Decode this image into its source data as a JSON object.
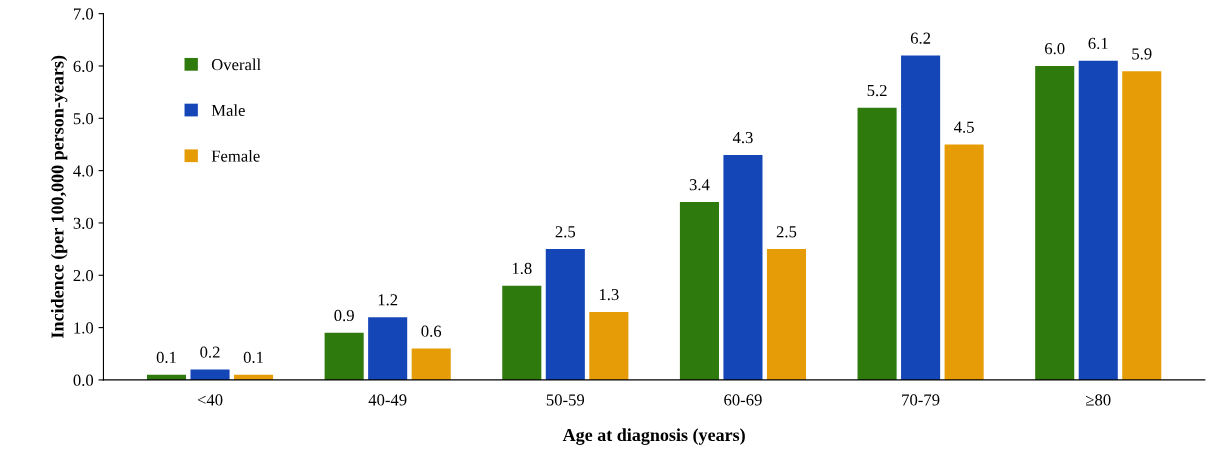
{
  "chart_data": {
    "type": "bar",
    "xlabel": "Age at diagnosis (years)",
    "ylabel": "Incidence (per 100,000 person-years)",
    "categories": [
      "<40",
      "40-49",
      "50-59",
      "60-69",
      "70-79",
      "≥80"
    ],
    "series": [
      {
        "name": "Overall",
        "color": "#2e7a0c",
        "values": [
          0.1,
          0.9,
          1.8,
          3.4,
          5.2,
          6.0
        ],
        "value_labels": [
          "0.1",
          "0.9",
          "1.8",
          "3.4",
          "5.2",
          "6.0"
        ]
      },
      {
        "name": "Male",
        "color": "#1446b8",
        "values": [
          0.2,
          1.2,
          2.5,
          4.3,
          6.2,
          6.1
        ],
        "value_labels": [
          "0.2",
          "1.2",
          "2.5",
          "4.3",
          "6.2",
          "6.1"
        ]
      },
      {
        "name": "Female",
        "color": "#e69c06",
        "values": [
          0.1,
          0.6,
          1.3,
          2.5,
          4.5,
          5.9
        ],
        "value_labels": [
          "0.1",
          "0.6",
          "1.3",
          "2.5",
          "4.5",
          "5.9"
        ]
      }
    ],
    "ylim": [
      0,
      7
    ],
    "yticks": [
      {
        "value": 0,
        "label": "0.0"
      },
      {
        "value": 1,
        "label": "1.0"
      },
      {
        "value": 2,
        "label": "2.0"
      },
      {
        "value": 3,
        "label": "3.0"
      },
      {
        "value": 4,
        "label": "4.0"
      },
      {
        "value": 5,
        "label": "5.0"
      },
      {
        "value": 6,
        "label": "6.0"
      },
      {
        "value": 7,
        "label": "7.0"
      }
    ],
    "grid": false,
    "legend": "top left"
  }
}
